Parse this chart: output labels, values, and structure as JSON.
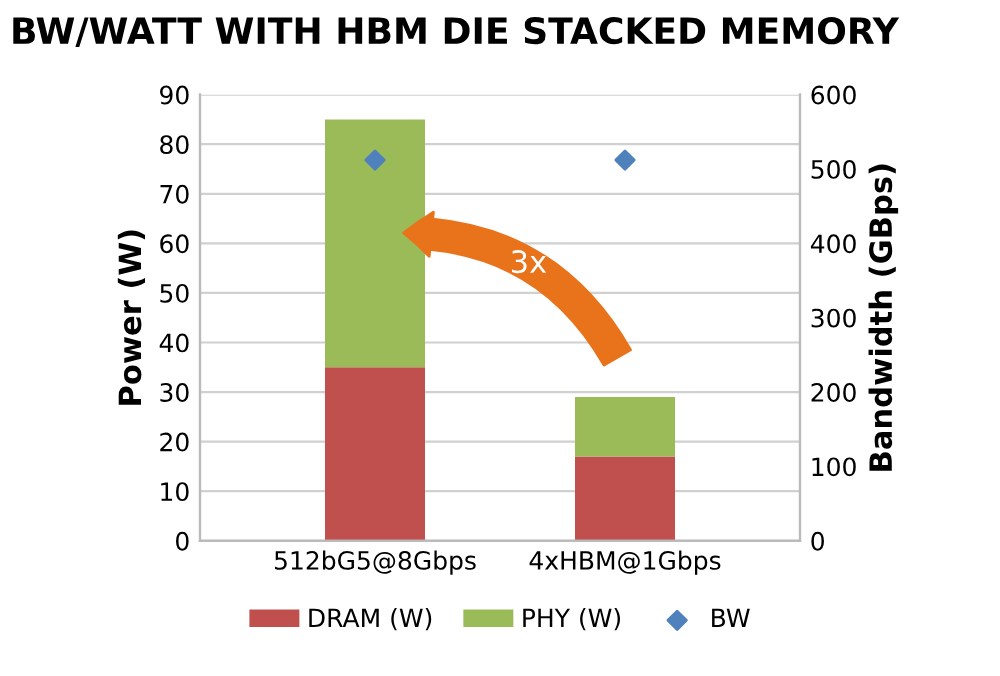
{
  "chart_data": {
    "type": "bar",
    "title": "BW/WATT WITH HBM DIE STACKED MEMORY",
    "categories": [
      "512bG5@8Gbps",
      "4xHBM@1Gbps"
    ],
    "stacked": true,
    "series": [
      {
        "name": "DRAM (W)",
        "color": "#c0504d",
        "values": [
          35,
          17
        ]
      },
      {
        "name": "PHY (W)",
        "color": "#9bbb59",
        "values": [
          50,
          12
        ]
      },
      {
        "name": "BW",
        "color": "#4f81bd",
        "values": [
          512,
          512
        ],
        "type": "scatter",
        "axis": "y2",
        "marker": "diamond"
      }
    ],
    "ylabel": "Power (W)",
    "y2label": "Bandwidth (GBps)",
    "ylim": [
      0,
      90
    ],
    "yticks": [
      0,
      10,
      20,
      30,
      40,
      50,
      60,
      70,
      80,
      90
    ],
    "y2lim": [
      0,
      600
    ],
    "y2ticks": [
      0,
      100,
      200,
      300,
      400,
      500,
      600
    ],
    "annotations": [
      "3x"
    ],
    "grid": "y",
    "legend": "bottom"
  }
}
